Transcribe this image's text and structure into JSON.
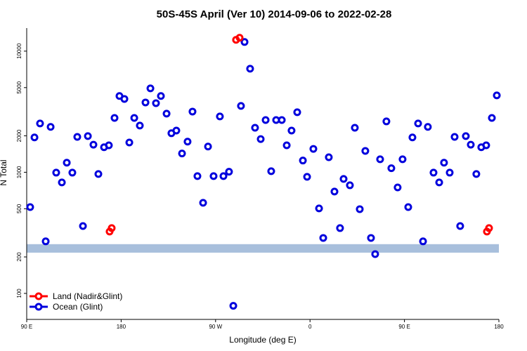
{
  "chart_data": {
    "type": "scatter",
    "title": "50S-45S April (Ver 10)   2014-09-06 to 2022-02-28",
    "xlabel": "Longitude (deg E)",
    "ylabel": "N Total",
    "xlim": [
      90,
      540
    ],
    "xticks": [
      {
        "value": 90,
        "label": "90 E"
      },
      {
        "value": 180,
        "label": "180"
      },
      {
        "value": 270,
        "label": "90 W"
      },
      {
        "value": 360,
        "label": "0"
      },
      {
        "value": 450,
        "label": "90 E"
      },
      {
        "value": 540,
        "label": "180"
      }
    ],
    "ylim": [
      61,
      15500
    ],
    "log_y": true,
    "yticks": [
      100,
      200,
      500,
      1000,
      2000,
      5000,
      10000
    ],
    "band": [
      217,
      255
    ],
    "band_color": "#a8bfdc",
    "legend": "bottom-left",
    "series": [
      {
        "name": "Land (Nadir&Glint)",
        "color": "#ff0000",
        "x": [
          169.0,
          171.0,
          289.5,
          292.9,
          528.6,
          530.6
        ],
        "values": [
          324,
          346,
          12400,
          12900,
          324,
          346
        ]
      },
      {
        "name": "Ocean (Glint)",
        "color": "#0000dd",
        "x": [
          93.3,
          97.4,
          102.7,
          108.1,
          112.8,
          118.1,
          123.5,
          128.2,
          133.5,
          138.2,
          143.6,
          148.3,
          153.6,
          158.3,
          163.7,
          168.3,
          173.7,
          178.4,
          183.1,
          187.8,
          192.5,
          197.8,
          203.2,
          207.9,
          213.2,
          217.9,
          223.3,
          227.9,
          232.6,
          238.0,
          243.3,
          248.0,
          252.7,
          258.1,
          262.8,
          268.1,
          274.1,
          277.5,
          282.8,
          286.9,
          294.2,
          297.6,
          302.9,
          307.6,
          313.0,
          317.7,
          323.0,
          327.7,
          333.1,
          337.8,
          342.4,
          347.8,
          353.2,
          357.2,
          363.2,
          368.6,
          372.6,
          377.9,
          383.3,
          388.6,
          392.0,
          398.0,
          402.7,
          407.4,
          412.7,
          418.1,
          422.1,
          426.8,
          432.8,
          437.5,
          443.5,
          448.2,
          453.6,
          457.6,
          463.0,
          467.7,
          472.3,
          477.7,
          483.1,
          487.7,
          493.1,
          497.8,
          503.1,
          508.5,
          513.2,
          518.5,
          523.2,
          527.9,
          533.3,
          538.0
        ],
        "values": [
          516,
          1940,
          2530,
          269,
          2370,
          993,
          824,
          1200,
          993,
          1960,
          360,
          1990,
          1690,
          967,
          1610,
          1670,
          2810,
          4260,
          4030,
          1760,
          2810,
          2430,
          3770,
          4930,
          3720,
          4260,
          3050,
          2100,
          2210,
          1430,
          1790,
          3170,
          929,
          560,
          1630,
          929,
          2890,
          929,
          1010,
          79,
          3530,
          11900,
          7160,
          2330,
          1880,
          2700,
          1020,
          2700,
          2700,
          1670,
          2210,
          3130,
          1250,
          917,
          1560,
          503,
          287,
          1330,
          693,
          346,
          881,
          781,
          2330,
          496,
          1500,
          287,
          211,
          1280,
          2630,
          1080,
          750,
          1280,
          516,
          1940,
          2530,
          269,
          2370,
          993,
          824,
          1200,
          993,
          1960,
          360,
          1990,
          1690,
          967,
          1610,
          1670,
          2810,
          4310
        ]
      }
    ]
  }
}
